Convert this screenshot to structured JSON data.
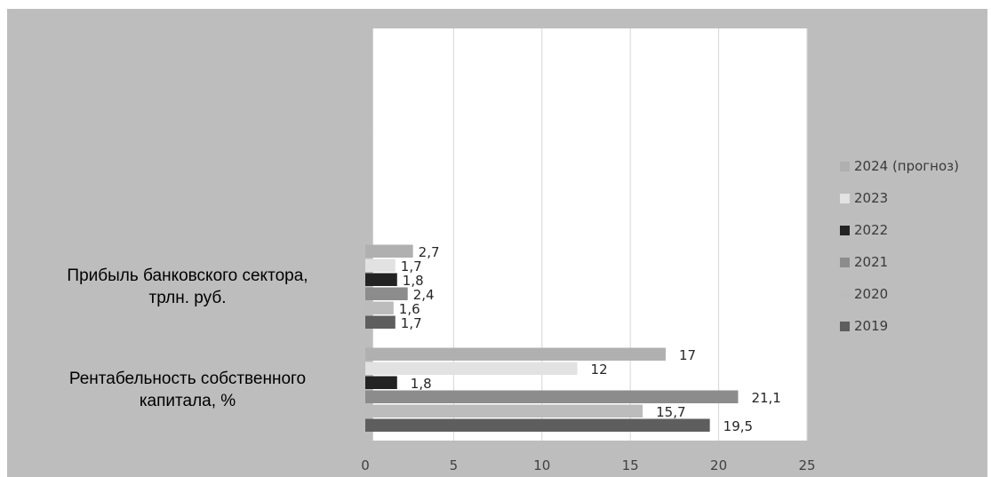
{
  "chart_data": {
    "type": "bar",
    "orientation": "horizontal",
    "title": "",
    "xlabel": "",
    "ylabel": "",
    "xlim": [
      0,
      25
    ],
    "x_ticks": [
      0,
      5,
      10,
      15,
      20,
      25
    ],
    "grid": "vertical",
    "legend_position": "right",
    "categories": [
      "Рентабельность собственного капитала, %",
      "Прибыль банковского сектора, трлн. руб."
    ],
    "category_label_lines": [
      [
        "Рентабельность собственного",
        "капитала, %"
      ],
      [
        "Прибыль банковского сектора,",
        "трлн. руб."
      ]
    ],
    "series": [
      {
        "name": "2019",
        "color": "#5e5e5e",
        "values": [
          19.5,
          1.7
        ],
        "labels": [
          "19,5",
          "1,7"
        ]
      },
      {
        "name": "2020",
        "color": "#bcbcbc",
        "values": [
          15.7,
          1.6
        ],
        "labels": [
          "15,7",
          "1,6"
        ]
      },
      {
        "name": "2021",
        "color": "#8c8c8c",
        "values": [
          21.1,
          2.4
        ],
        "labels": [
          "21,1",
          "2,4"
        ]
      },
      {
        "name": "2022",
        "color": "#232323",
        "values": [
          1.8,
          1.8
        ],
        "labels": [
          "1,8",
          "1,8"
        ]
      },
      {
        "name": "2023",
        "color": "#e2e2e2",
        "values": [
          12,
          1.7
        ],
        "labels": [
          "12",
          "1,7"
        ]
      },
      {
        "name": "2024 (прогноз)",
        "color": "#b0b0b0",
        "values": [
          17,
          2.7
        ],
        "labels": [
          "17",
          "2,7"
        ]
      }
    ]
  }
}
